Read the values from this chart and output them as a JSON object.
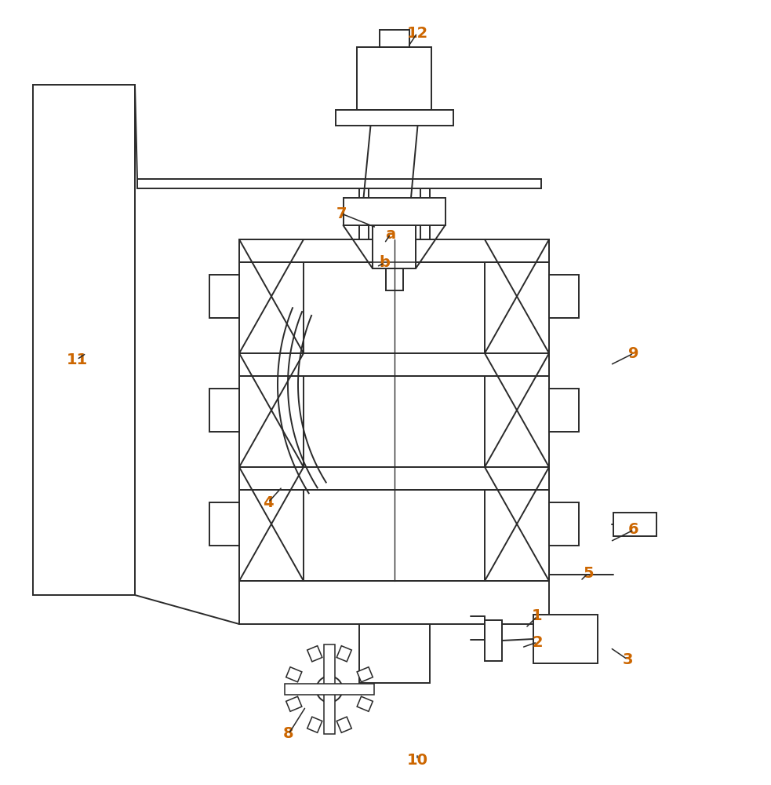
{
  "bg_color": "#ffffff",
  "line_color": "#2a2a2a",
  "label_color": "#cc6600",
  "lw": 1.4,
  "figsize": [
    9.83,
    10.0
  ],
  "dpi": 100
}
